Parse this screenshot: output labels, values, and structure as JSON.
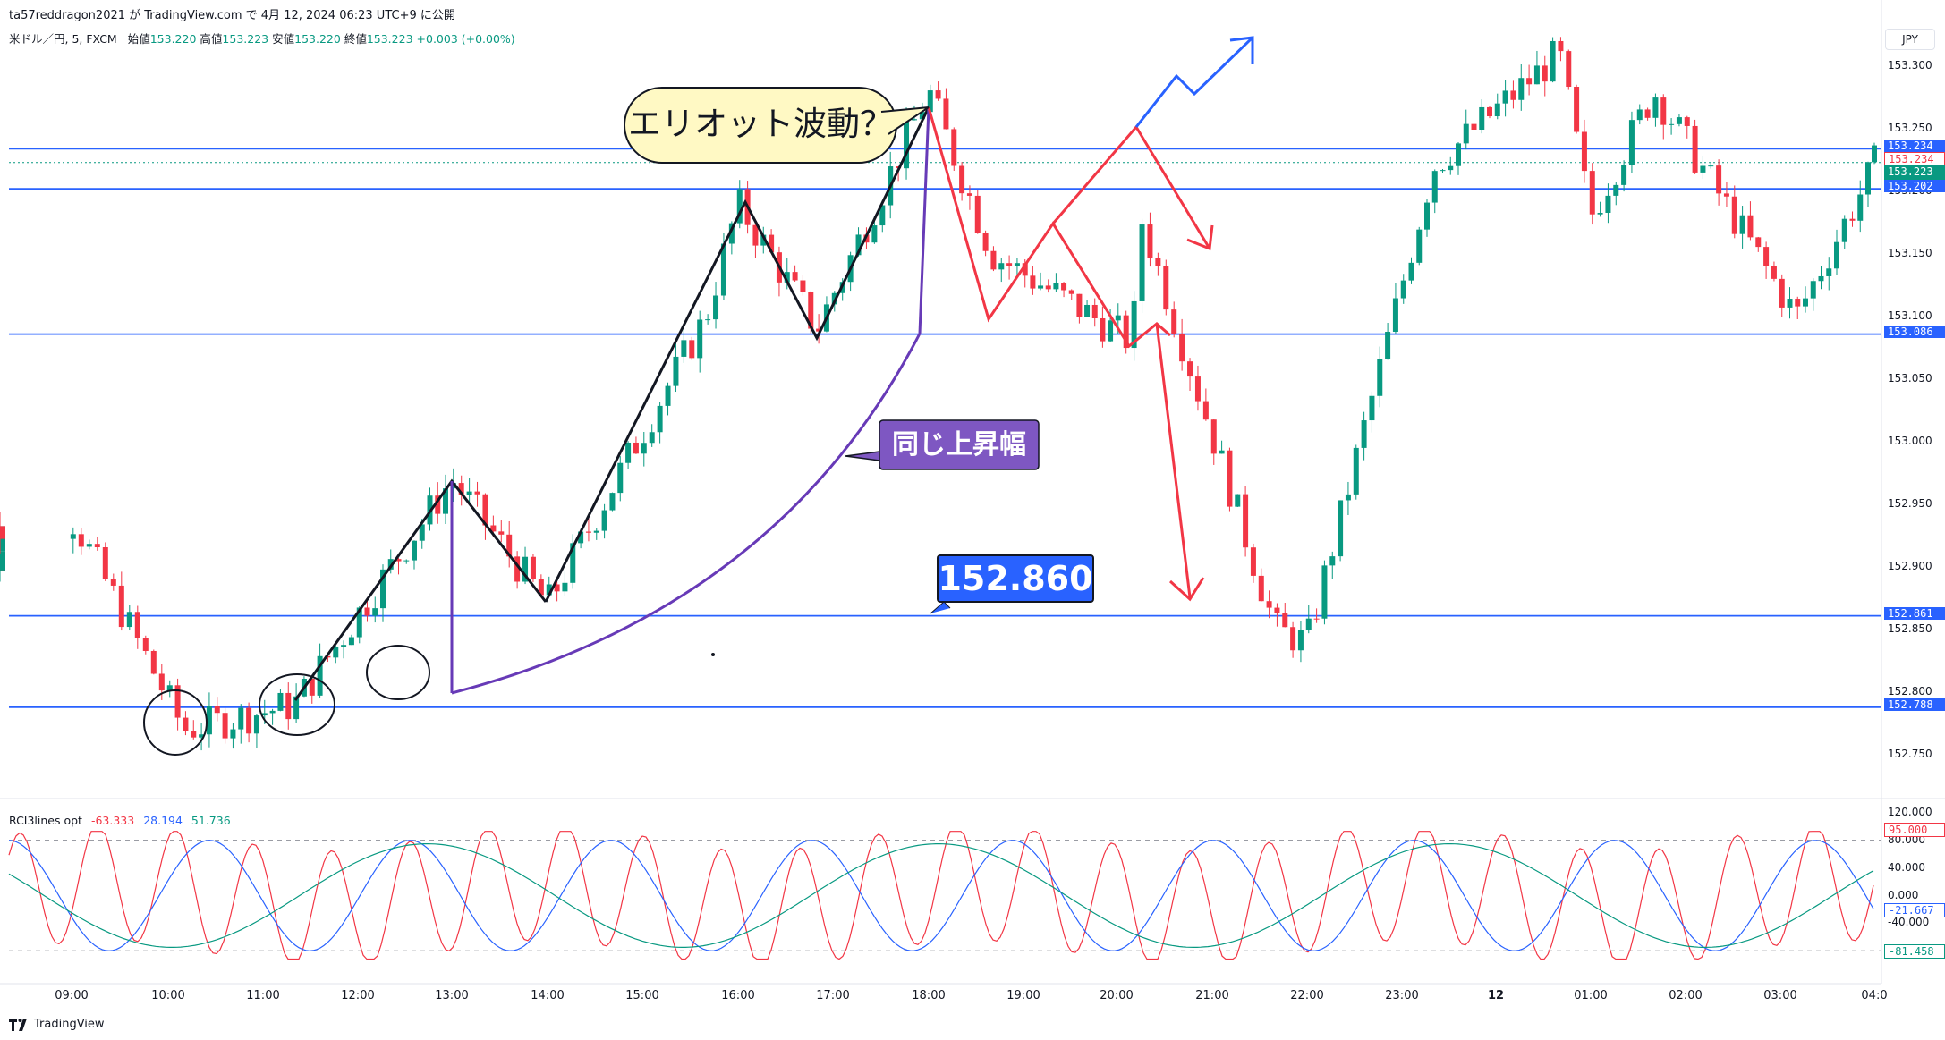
{
  "header": {
    "published_line": "ta57reddragon2021 が TradingView.com で 4月 12, 2024 06:23 UTC+9 に公開",
    "symbol_line_prefix": "米ドル／円, 5, FXCM",
    "ohlc": {
      "open_label": "始値",
      "open": "153.220",
      "high_label": "高値",
      "high": "153.223",
      "low_label": "安値",
      "low": "153.220",
      "close_label": "終値",
      "close": "153.223",
      "change": "+0.003 (+0.00%)"
    },
    "currency_button": "JPY"
  },
  "chart_data": [
    {
      "type": "candlestick",
      "symbol": "USDJPY",
      "timeframe": "5",
      "x_tick_labels": [
        "09:00",
        "10:00",
        "11:00",
        "12:00",
        "13:00",
        "14:00",
        "15:00",
        "16:00",
        "17:00",
        "18:00",
        "19:00",
        "20:00",
        "21:00",
        "22:00",
        "23:00",
        "12",
        "01:00",
        "02:00",
        "03:00",
        "04:0"
      ],
      "y_tick_labels": [
        "153.300",
        "153.250",
        "153.200",
        "153.150",
        "153.100",
        "153.050",
        "153.000",
        "152.950",
        "152.900",
        "152.850",
        "152.800",
        "152.750"
      ],
      "ylim": [
        152.715,
        153.335
      ],
      "horizontal_levels": [
        153.234,
        153.202,
        153.086,
        152.861,
        152.788
      ],
      "price_pills": [
        {
          "value": "153.234",
          "color": "#2962ff"
        },
        {
          "value": "153.234",
          "color": "#f23645",
          "style": "outline"
        },
        {
          "value": "153.223",
          "color": "#089981"
        },
        {
          "value": "01:50",
          "color": "#089981"
        },
        {
          "value": "153.202",
          "color": "#2962ff"
        },
        {
          "value": "153.086",
          "color": "#2962ff"
        },
        {
          "value": "152.861",
          "color": "#2962ff"
        },
        {
          "value": "152.788",
          "color": "#2962ff"
        }
      ],
      "pivots_approx": [
        {
          "t": "09:00",
          "p": 152.94
        },
        {
          "t": "10:10",
          "p": 152.77
        },
        {
          "t": "11:20",
          "p": 152.79
        },
        {
          "t": "13:00",
          "p": 152.97
        },
        {
          "t": "14:00",
          "p": 152.87
        },
        {
          "t": "15:40",
          "p": 153.1
        },
        {
          "t": "16:00",
          "p": 153.19
        },
        {
          "t": "16:50",
          "p": 153.09
        },
        {
          "t": "18:00",
          "p": 153.28
        },
        {
          "t": "18:40",
          "p": 153.15
        },
        {
          "t": "20:10",
          "p": 153.08
        },
        {
          "t": "20:15",
          "p": 153.18
        },
        {
          "t": "21:40",
          "p": 152.85
        },
        {
          "t": "22:00",
          "p": 152.84
        },
        {
          "t": "23:20",
          "p": 153.22
        },
        {
          "t": "12 00:40",
          "p": 153.31
        },
        {
          "t": "01:00",
          "p": 153.18
        },
        {
          "t": "01:40",
          "p": 153.28
        },
        {
          "t": "03:10",
          "p": 153.1
        },
        {
          "t": "04:00",
          "p": 153.22
        }
      ]
    },
    {
      "type": "line",
      "indicator": "RCI3lines opt",
      "series": [
        {
          "name": "",
          "value": "-63.333",
          "color": "#f23645"
        },
        {
          "name": "",
          "value": "28.194",
          "color": "#2962ff"
        },
        {
          "name": "",
          "value": "51.736",
          "color": "#089981"
        }
      ],
      "y_tick_labels": [
        "120.000",
        "80.000",
        "40.000",
        "0.000",
        "-40.000",
        "-80.000"
      ],
      "ylim": [
        -125,
        125
      ],
      "reference_levels": [
        80,
        -80
      ],
      "pills": [
        {
          "value": "95.000",
          "color": "#f23645",
          "style": "outline"
        },
        {
          "value": "-21.667",
          "color": "#2962ff",
          "style": "outline"
        },
        {
          "value": "-81.458",
          "color": "#089981",
          "style": "outline"
        }
      ]
    }
  ],
  "annotations": {
    "elliott_label": "エリオット波動？",
    "same_rise_label": "同じ上昇幅",
    "price_label": "152.860"
  },
  "footer": {
    "brand": "TradingView"
  }
}
